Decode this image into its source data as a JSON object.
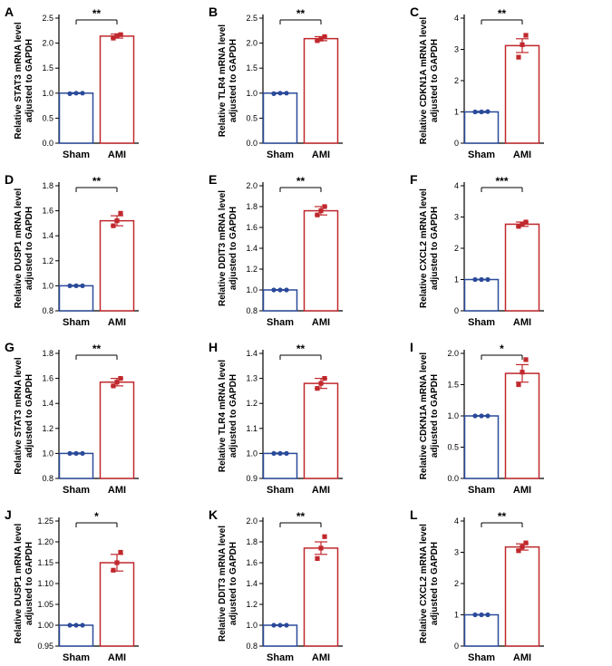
{
  "colors": {
    "sham": "#2a4a9a",
    "ami": "#c0282d",
    "axis": "#000000"
  },
  "chart_data": [
    {
      "letter": "A",
      "type": "bar",
      "ylabel": [
        "Relative STAT3 mRNA level",
        "adjusted to GAPDH"
      ],
      "categories": [
        "Sham",
        "AMI"
      ],
      "values": [
        1.0,
        2.14
      ],
      "errors": [
        0.01,
        0.04
      ],
      "points": [
        [
          0.99,
          1.0,
          1.0
        ],
        [
          2.1,
          2.15,
          2.17
        ]
      ],
      "ylim": [
        0,
        2.5
      ],
      "yticks": [
        "0.0",
        "0.5",
        "1.0",
        "1.5",
        "2.0",
        "2.5"
      ],
      "significance": "**"
    },
    {
      "letter": "B",
      "type": "bar",
      "ylabel": [
        "Relative TLR4 mRNA level",
        "adjusted to GAPDH"
      ],
      "categories": [
        "Sham",
        "AMI"
      ],
      "values": [
        1.0,
        2.09
      ],
      "errors": [
        0.01,
        0.04
      ],
      "points": [
        [
          0.99,
          1.0,
          1.0
        ],
        [
          2.05,
          2.08,
          2.13
        ]
      ],
      "ylim": [
        0,
        2.5
      ],
      "yticks": [
        "0.0",
        "0.5",
        "1.0",
        "1.5",
        "2.0",
        "2.5"
      ],
      "significance": "**"
    },
    {
      "letter": "C",
      "type": "bar",
      "ylabel": [
        "Relative CDKN1A mRNA level",
        "adjusted to GAPDH"
      ],
      "categories": [
        "Sham",
        "AMI"
      ],
      "values": [
        1.0,
        3.12
      ],
      "errors": [
        0.02,
        0.22
      ],
      "points": [
        [
          1.0,
          1.0,
          1.01
        ],
        [
          2.75,
          3.15,
          3.45
        ]
      ],
      "ylim": [
        0,
        4
      ],
      "yticks": [
        "0",
        "1",
        "2",
        "3",
        "4"
      ],
      "significance": "**"
    },
    {
      "letter": "D",
      "type": "bar",
      "ylabel": [
        "Relative DUSP1 mRNA level",
        "adjusted to GAPDH"
      ],
      "categories": [
        "Sham",
        "AMI"
      ],
      "values": [
        1.0,
        1.52
      ],
      "errors": [
        0.004,
        0.04
      ],
      "points": [
        [
          1.0,
          1.0,
          1.0
        ],
        [
          1.48,
          1.52,
          1.58
        ]
      ],
      "ylim": [
        0.8,
        1.8
      ],
      "yticks": [
        "0.8",
        "1.0",
        "1.2",
        "1.4",
        "1.6",
        "1.8"
      ],
      "significance": "**"
    },
    {
      "letter": "E",
      "type": "bar",
      "ylabel": [
        "Relative DDIT3 mRNA level",
        "adjusted to GAPDH"
      ],
      "categories": [
        "Sham",
        "AMI"
      ],
      "values": [
        1.0,
        1.76
      ],
      "errors": [
        0.004,
        0.04
      ],
      "points": [
        [
          1.0,
          1.0,
          1.0
        ],
        [
          1.72,
          1.76,
          1.8
        ]
      ],
      "ylim": [
        0.8,
        2.0
      ],
      "yticks": [
        "0.8",
        "1.0",
        "1.2",
        "1.4",
        "1.6",
        "1.8",
        "2.0"
      ],
      "significance": "**"
    },
    {
      "letter": "F",
      "type": "bar",
      "ylabel": [
        "Relative CXCL2 mRNA level",
        "adjusted to GAPDH"
      ],
      "categories": [
        "Sham",
        "AMI"
      ],
      "values": [
        1.0,
        2.77
      ],
      "errors": [
        0.01,
        0.07
      ],
      "points": [
        [
          1.0,
          1.0,
          1.0
        ],
        [
          2.7,
          2.76,
          2.84
        ]
      ],
      "ylim": [
        0,
        4
      ],
      "yticks": [
        "0",
        "1",
        "2",
        "3",
        "4"
      ],
      "significance": "***"
    },
    {
      "letter": "G",
      "type": "bar",
      "ylabel": [
        "Relative STAT3 mRNA level",
        "adjusted to GAPDH"
      ],
      "categories": [
        "Sham",
        "AMI"
      ],
      "values": [
        1.0,
        1.57
      ],
      "errors": [
        0.004,
        0.03
      ],
      "points": [
        [
          1.0,
          1.0,
          1.0
        ],
        [
          1.54,
          1.57,
          1.6
        ]
      ],
      "ylim": [
        0.8,
        1.8
      ],
      "yticks": [
        "0.8",
        "1.0",
        "1.2",
        "1.4",
        "1.6",
        "1.8"
      ],
      "significance": "**"
    },
    {
      "letter": "H",
      "type": "bar",
      "ylabel": [
        "Relative TLR4 mRNA level",
        "adjusted to GAPDH"
      ],
      "categories": [
        "Sham",
        "AMI"
      ],
      "values": [
        1.0,
        1.28
      ],
      "errors": [
        0.002,
        0.02
      ],
      "points": [
        [
          1.0,
          1.0,
          1.0
        ],
        [
          1.26,
          1.28,
          1.3
        ]
      ],
      "ylim": [
        0.9,
        1.4
      ],
      "yticks": [
        "0.9",
        "1.0",
        "1.1",
        "1.2",
        "1.3",
        "1.4"
      ],
      "significance": "**"
    },
    {
      "letter": "I",
      "type": "bar",
      "ylabel": [
        "Relative CDKN1A mRNA level",
        "adjusted to GAPDH"
      ],
      "categories": [
        "Sham",
        "AMI"
      ],
      "values": [
        1.0,
        1.68
      ],
      "errors": [
        0.005,
        0.14
      ],
      "points": [
        [
          1.0,
          1.0,
          1.0
        ],
        [
          1.5,
          1.7,
          1.9
        ]
      ],
      "ylim": [
        0,
        2.0
      ],
      "yticks": [
        "0.0",
        "0.5",
        "1.0",
        "1.5",
        "2.0"
      ],
      "significance": "*"
    },
    {
      "letter": "J",
      "type": "bar",
      "ylabel": [
        "Relative DUSP1 mRNA level",
        "adjusted to GAPDH"
      ],
      "categories": [
        "Sham",
        "AMI"
      ],
      "values": [
        1.0,
        1.15
      ],
      "errors": [
        0.001,
        0.02
      ],
      "points": [
        [
          1.0,
          1.0,
          1.0
        ],
        [
          1.132,
          1.15,
          1.175
        ]
      ],
      "ylim": [
        0.95,
        1.25
      ],
      "yticks": [
        "0.95",
        "1.00",
        "1.05",
        "1.10",
        "1.15",
        "1.20",
        "1.25"
      ],
      "significance": "*"
    },
    {
      "letter": "K",
      "type": "bar",
      "ylabel": [
        "Relative DDIT3 mRNA level",
        "adjusted to GAPDH"
      ],
      "categories": [
        "Sham",
        "AMI"
      ],
      "values": [
        1.0,
        1.74
      ],
      "errors": [
        0.004,
        0.06
      ],
      "points": [
        [
          1.0,
          1.0,
          1.0
        ],
        [
          1.64,
          1.74,
          1.85
        ]
      ],
      "ylim": [
        0.8,
        2.0
      ],
      "yticks": [
        "0.8",
        "1.0",
        "1.2",
        "1.4",
        "1.6",
        "1.8",
        "2.0"
      ],
      "significance": "**"
    },
    {
      "letter": "L",
      "type": "bar",
      "ylabel": [
        "Relative CXCL2 mRNA level",
        "adjusted to GAPDH"
      ],
      "categories": [
        "Sham",
        "AMI"
      ],
      "values": [
        1.0,
        3.17
      ],
      "errors": [
        0.01,
        0.1
      ],
      "points": [
        [
          1.0,
          1.0,
          1.0
        ],
        [
          3.05,
          3.17,
          3.3
        ]
      ],
      "ylim": [
        0,
        4
      ],
      "yticks": [
        "0",
        "1",
        "2",
        "3",
        "4"
      ],
      "significance": "**"
    }
  ]
}
